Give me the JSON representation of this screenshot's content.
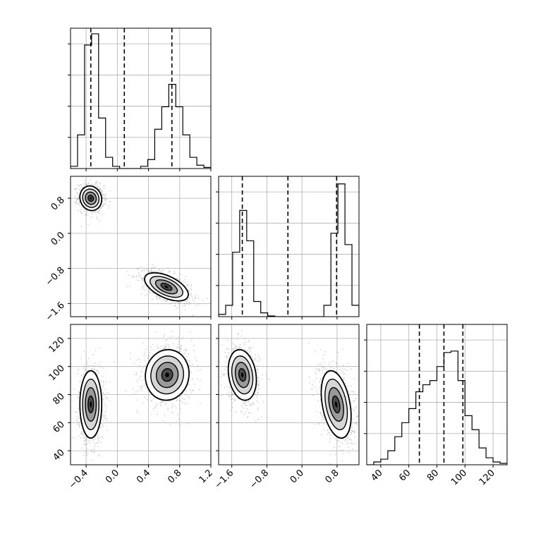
{
  "chart_data": {
    "type": "corner",
    "description_note": "",
    "variables": [
      {
        "range": [
          -0.6,
          1.2
        ],
        "ticks": [
          {
            "v": -0.4,
            "label": "−0.4"
          },
          {
            "v": 0.0,
            "label": "0.0"
          },
          {
            "v": 0.4,
            "label": "0.4"
          },
          {
            "v": 0.8,
            "label": "0.8"
          },
          {
            "v": 1.2,
            "label": "1.2"
          }
        ],
        "quantiles": [
          -0.34,
          0.09,
          0.7
        ],
        "histogram": {
          "edges_start": -0.6,
          "bin_width": 0.09,
          "counts": [
            2,
            30,
            110,
            120,
            45,
            10,
            2,
            0,
            0,
            0,
            2,
            8,
            35,
            55,
            75,
            55,
            30,
            10,
            3,
            1
          ],
          "ymax": 125
        }
      },
      {
        "range": [
          -1.9,
          1.3
        ],
        "ticks": [
          {
            "v": -1.6,
            "label": "−1.6"
          },
          {
            "v": -0.8,
            "label": "−0.8"
          },
          {
            "v": 0.0,
            "label": "0.0"
          },
          {
            "v": 0.8,
            "label": "0.8"
          }
        ],
        "quantiles": [
          -1.36,
          -0.32,
          0.79
        ],
        "histogram": {
          "edges_start": -1.9,
          "bin_width": 0.16,
          "counts": [
            3,
            15,
            85,
            140,
            100,
            20,
            5,
            1,
            0,
            0,
            0,
            0,
            0,
            0,
            0,
            15,
            110,
            175,
            95,
            15
          ],
          "ymax": 185
        }
      },
      {
        "range": [
          30,
          130
        ],
        "ticks": [
          {
            "v": 40,
            "label": "40"
          },
          {
            "v": 60,
            "label": "60"
          },
          {
            "v": 80,
            "label": "80"
          },
          {
            "v": 100,
            "label": "100"
          },
          {
            "v": 120,
            "label": "120"
          }
        ],
        "quantiles": [
          67.5,
          85.0,
          98.5
        ],
        "histogram": {
          "edges_start": 30,
          "bin_width": 5,
          "counts": [
            0,
            2,
            4,
            10,
            20,
            30,
            40,
            52,
            57,
            60,
            70,
            80,
            81,
            60,
            35,
            25,
            12,
            5,
            2,
            1
          ],
          "ymax": 100
        }
      }
    ],
    "clusters_2d": [
      {
        "x": 0,
        "y": 1,
        "cx": -0.34,
        "cy": 0.8,
        "sx": 0.07,
        "sy": 0.14,
        "rho": -0.1
      },
      {
        "x": 0,
        "y": 1,
        "cx": 0.63,
        "cy": -1.22,
        "sx": 0.14,
        "sy": 0.16,
        "rho": -0.55
      },
      {
        "x": 0,
        "y": 2,
        "cx": -0.34,
        "cy": 73,
        "sx": 0.07,
        "sy": 12,
        "rho": 0.0
      },
      {
        "x": 0,
        "y": 2,
        "cx": 0.64,
        "cy": 94,
        "sx": 0.14,
        "sy": 9,
        "rho": 0.05
      },
      {
        "x": 1,
        "y": 2,
        "cx": -1.36,
        "cy": 94,
        "sx": 0.16,
        "sy": 9,
        "rho": -0.2
      },
      {
        "x": 1,
        "y": 2,
        "cx": 0.78,
        "cy": 73,
        "sx": 0.17,
        "sy": 12,
        "rho": -0.35
      }
    ]
  },
  "colors": {
    "axes": "#000000",
    "grid": "#b0b0b0",
    "points": "#555555",
    "density_dark": "#000000"
  }
}
